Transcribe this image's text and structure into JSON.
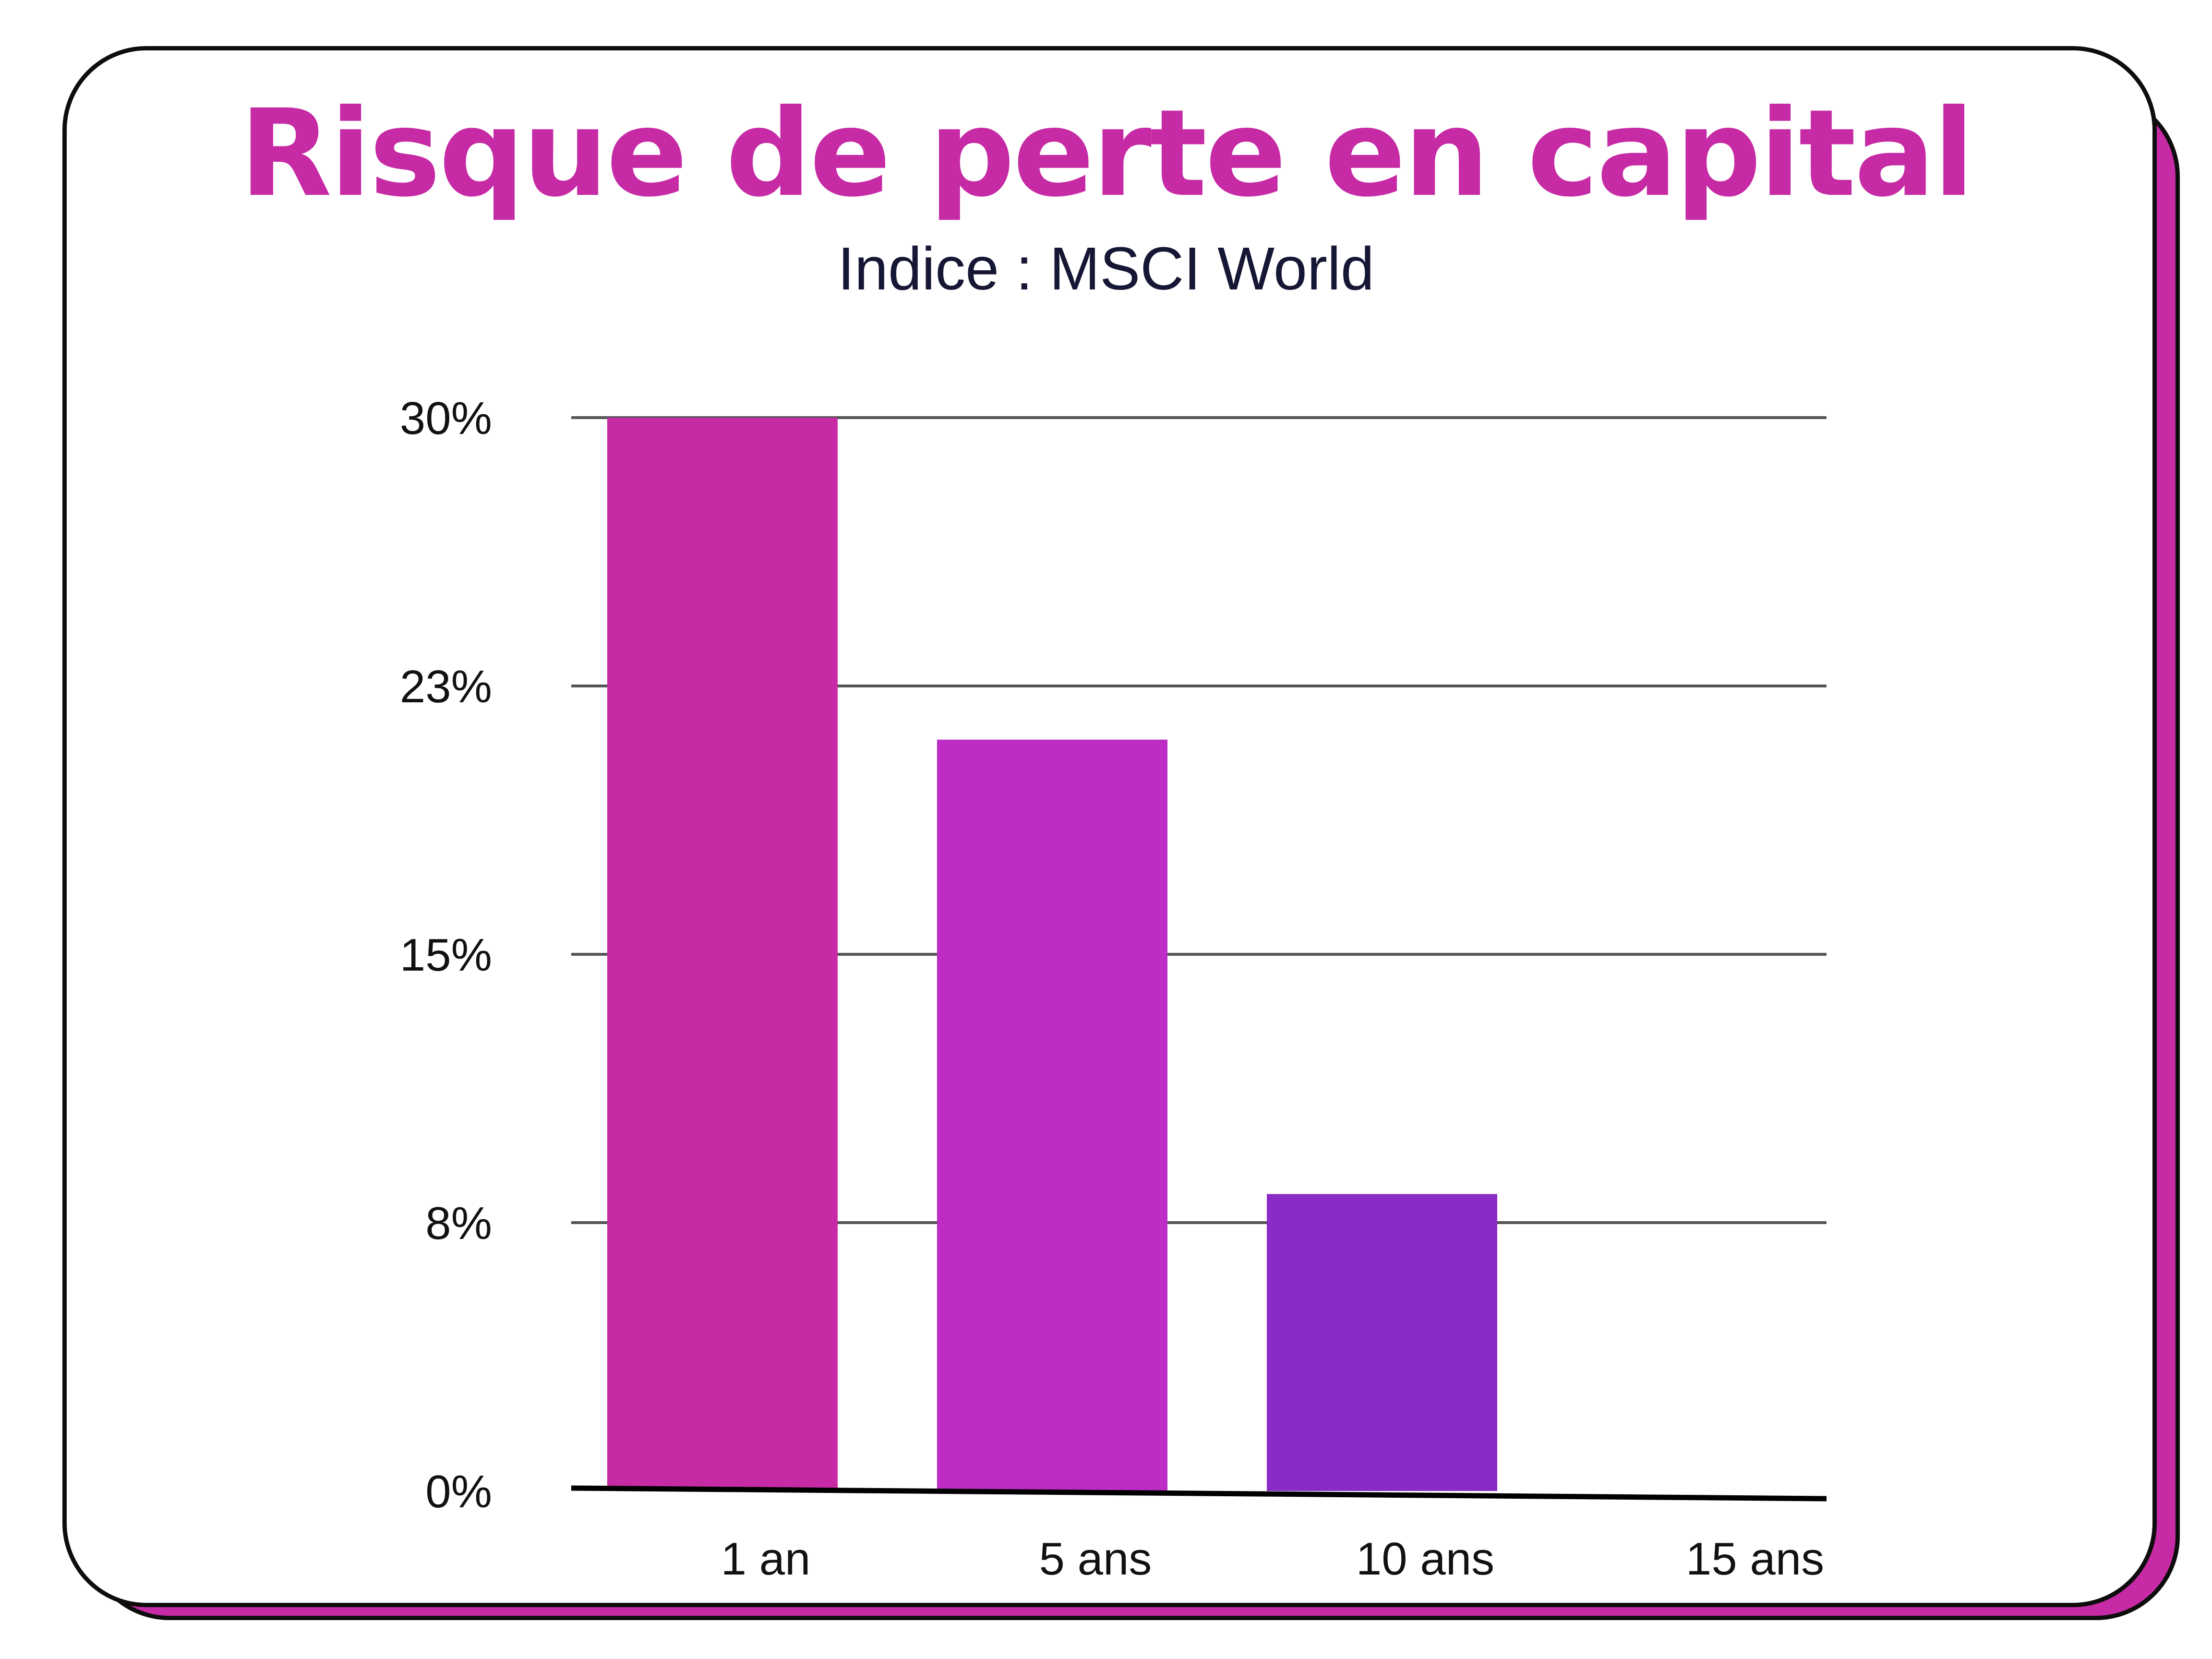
{
  "chart_data": {
    "type": "bar",
    "title": "Risque de perte en capital",
    "subtitle": "Indice : MSCI World",
    "categories": [
      "1 an",
      "5 ans",
      "10 ans",
      "15 ans"
    ],
    "values": [
      30,
      21,
      8.3,
      0
    ],
    "yticks": [
      "0%",
      "8%",
      "15%",
      "23%",
      "30%"
    ],
    "ylim": [
      0,
      30
    ],
    "grid": true,
    "colors": [
      "#c62aa4",
      "#bd2cc4",
      "#8a2bc5",
      "#8a2bc5"
    ],
    "accent": "#c62aa4"
  }
}
